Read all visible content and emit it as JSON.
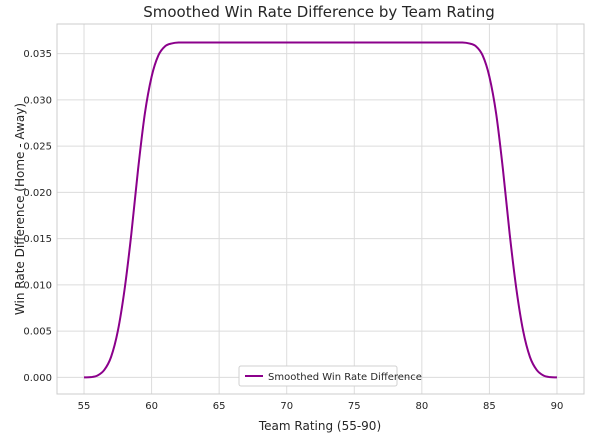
{
  "chart_data": {
    "type": "line",
    "title": "Smoothed Win Rate Difference by Team Rating",
    "xlabel": "Team Rating (55-90)",
    "ylabel": "Win Rate Difference (Home - Away)",
    "xlim": [
      53.0,
      92.0
    ],
    "ylim": [
      -0.0018,
      0.0382
    ],
    "x_ticks": [
      55,
      60,
      65,
      70,
      75,
      80,
      85,
      90
    ],
    "y_ticks": [
      0.0,
      0.005,
      0.01,
      0.015,
      0.02,
      0.025,
      0.03,
      0.035
    ],
    "y_tick_labels": [
      "0.000",
      "0.005",
      "0.010",
      "0.015",
      "0.020",
      "0.025",
      "0.030",
      "0.035"
    ],
    "grid": true,
    "legend_position": "bottom-center",
    "series": [
      {
        "name": "Smoothed Win Rate Difference",
        "color": "#8b008b",
        "x": [
          55,
          55.5,
          56,
          56.5,
          57,
          57.5,
          58,
          58.5,
          59,
          59.5,
          60,
          60.5,
          61,
          61.5,
          62,
          63,
          65,
          70,
          75,
          80,
          82,
          83,
          83.5,
          84,
          84.5,
          85,
          85.5,
          86,
          86.5,
          87,
          87.5,
          88,
          88.5,
          89,
          89.5,
          90
        ],
        "values": [
          0.0,
          2e-05,
          0.0002,
          0.0008,
          0.0022,
          0.005,
          0.0095,
          0.0155,
          0.0225,
          0.0285,
          0.0325,
          0.0348,
          0.0358,
          0.0361,
          0.0362,
          0.0362,
          0.0362,
          0.0362,
          0.0362,
          0.0362,
          0.0362,
          0.0362,
          0.0361,
          0.0358,
          0.0348,
          0.0325,
          0.0285,
          0.0225,
          0.0155,
          0.0095,
          0.005,
          0.0022,
          0.0008,
          0.0002,
          2e-05,
          0.0
        ]
      }
    ]
  }
}
